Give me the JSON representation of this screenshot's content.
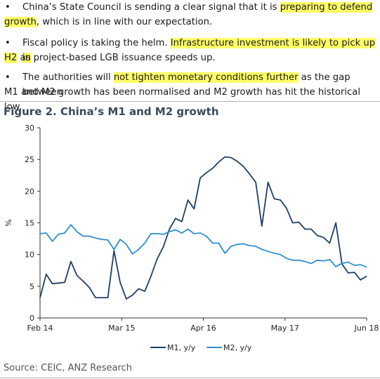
{
  "bullets": [
    {
      "dot": "•",
      "line1_a": "China’s State Council is sending a clear signal that it is ",
      "line1_hl": "preparing to defend",
      "line2_hl": "growth",
      "line2_b": ", which is in line with our expectation."
    },
    {
      "dot": "•",
      "line1_a": "Fiscal policy is taking the helm. ",
      "line1_hl": "Infrastructure investment is likely to pick up in",
      "line2_hl": "H2",
      "line2_b": " as project-based LGB issuance speeds up."
    },
    {
      "dot": "•",
      "line1_a": "The authorities will ",
      "line1_hl": "not tighten monetary conditions further",
      "line1_b": " as the gap between",
      "line2_b": "M1 and M2 growth has been normalised and M2 growth has hit the historical low."
    }
  ],
  "figure_title": "Figure 2. China’s M1 and M2 growth",
  "source": "Source: CEIC, ANZ Research",
  "chart_data": {
    "type": "line",
    "ylabel": "%",
    "ylim": [
      0,
      30
    ],
    "yticks": [
      "0",
      "5",
      "10",
      "15",
      "20",
      "25",
      "30"
    ],
    "xticks": [
      {
        "label": "Feb 14",
        "x": 0
      },
      {
        "label": "Mar 15",
        "x": 13
      },
      {
        "label": "Apr 16",
        "x": 26
      },
      {
        "label": "May 17",
        "x": 39
      },
      {
        "label": "Jun 18",
        "x": 52
      }
    ],
    "xlim": [
      0,
      52
    ],
    "grid": false,
    "legend": "bottom-center",
    "series": [
      {
        "name": "M1, y/y",
        "color": "#1f3f66",
        "values": [
          3.2,
          6.9,
          5.4,
          5.5,
          5.6,
          8.9,
          6.7,
          5.8,
          4.8,
          3.2,
          3.2,
          3.2,
          10.6,
          5.6,
          3.0,
          3.6,
          4.6,
          4.2,
          6.6,
          9.3,
          11.2,
          14.0,
          15.7,
          15.2,
          18.6,
          17.2,
          22.1,
          22.9,
          23.6,
          24.6,
          25.4,
          25.3,
          24.7,
          23.9,
          22.7,
          21.4,
          14.5,
          21.4,
          18.8,
          18.6,
          17.3,
          15.0,
          15.1,
          14.0,
          14.0,
          13.0,
          12.7,
          11.8,
          15.0,
          8.5,
          7.1,
          7.2,
          6.0,
          6.6
        ]
      },
      {
        "name": "M2, y/y",
        "color": "#2f8fd0",
        "values": [
          13.3,
          13.4,
          12.1,
          13.2,
          13.4,
          14.7,
          13.6,
          12.9,
          12.9,
          12.6,
          12.4,
          12.3,
          10.8,
          12.4,
          11.6,
          10.1,
          10.8,
          11.8,
          13.3,
          13.3,
          13.2,
          13.6,
          13.9,
          13.4,
          14.0,
          13.3,
          13.4,
          12.9,
          11.8,
          11.8,
          10.2,
          11.3,
          11.6,
          11.7,
          11.4,
          11.3,
          10.8,
          10.5,
          10.2,
          10.0,
          9.4,
          9.1,
          9.1,
          8.9,
          8.6,
          9.1,
          9.0,
          9.2,
          8.1,
          8.6,
          8.8,
          8.3,
          8.4,
          8.0
        ]
      }
    ]
  }
}
